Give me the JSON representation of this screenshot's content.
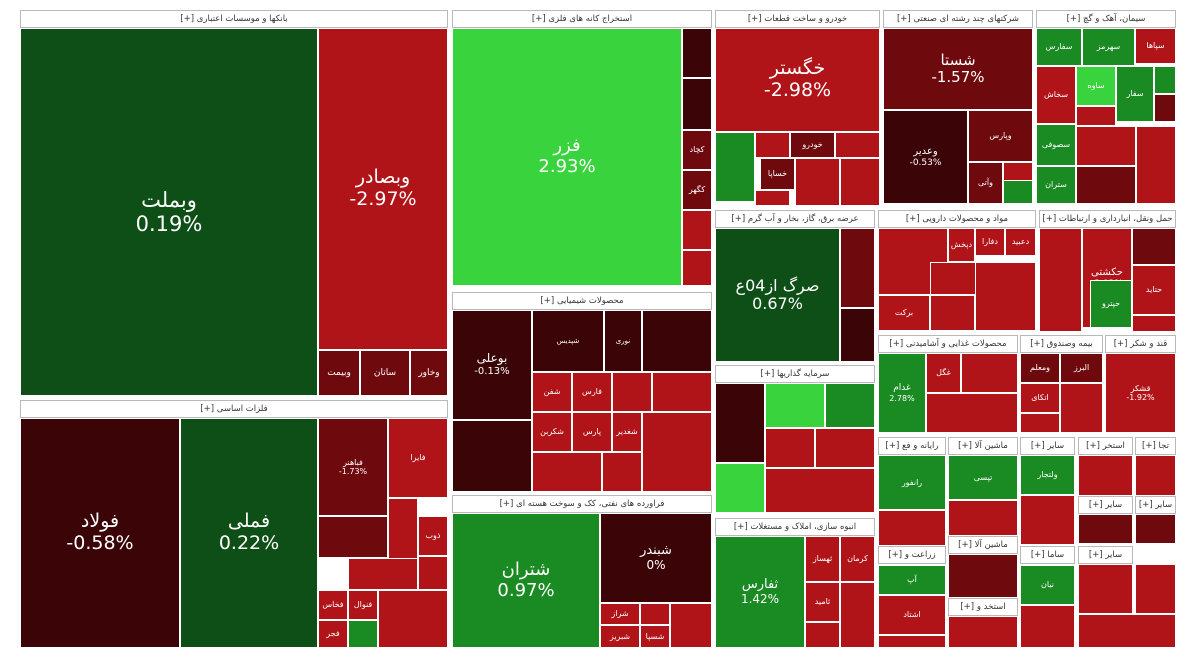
{
  "chart_data": {
    "type": "treemap",
    "sectors": [
      {
        "name": "بانکها و موسسات اعتباری [+]",
        "tiles": [
          {
            "symbol": "وبملت",
            "change": "0.19%"
          },
          {
            "symbol": "وبصادر",
            "change": "-2.97%"
          },
          {
            "symbol": "وخاور",
            "change": ""
          },
          {
            "symbol": "ساتان",
            "change": ""
          },
          {
            "symbol": "وبیمت",
            "change": ""
          }
        ]
      },
      {
        "name": "استخراج کانه های فلزی [+]",
        "tiles": [
          {
            "symbol": "فزر",
            "change": "2.93%"
          },
          {
            "symbol": "کگهر",
            "change": ""
          },
          {
            "symbol": "کچاد",
            "change": ""
          }
        ]
      },
      {
        "name": "خودرو و ساخت قطعات [+]",
        "tiles": [
          {
            "symbol": "خگستر",
            "change": "-2.98%"
          },
          {
            "symbol": "خودرو",
            "change": ""
          },
          {
            "symbol": "خساپا",
            "change": ""
          }
        ]
      },
      {
        "name": "شرکتهای چند رشته ای صنعتی [+]",
        "tiles": [
          {
            "symbol": "شستا",
            "change": "-1.57%"
          },
          {
            "symbol": "وعدیر",
            "change": "-0.53%"
          },
          {
            "symbol": "وپارس",
            "change": ""
          },
          {
            "symbol": "وآتی",
            "change": ""
          }
        ]
      },
      {
        "name": "سیمان، آهک و گچ [+]",
        "tiles": [
          {
            "symbol": "سپاها",
            "change": ""
          },
          {
            "symbol": "سهرمز",
            "change": ""
          },
          {
            "symbol": "سفارس",
            "change": ""
          },
          {
            "symbol": "سخاش",
            "change": ""
          },
          {
            "symbol": "ساوه",
            "change": ""
          },
          {
            "symbol": "سفار",
            "change": ""
          },
          {
            "symbol": "سصوفی",
            "change": ""
          },
          {
            "symbol": "ستران",
            "change": ""
          }
        ]
      },
      {
        "name": "عرضه برق، گاز، بخار و آب گرم [+]",
        "tiles": [
          {
            "symbol": "صرگ از04ع",
            "change": "0.67%"
          }
        ]
      },
      {
        "name": "مواد و محصولات دارویی [+]",
        "tiles": [
          {
            "symbol": "دعبید",
            "change": ""
          },
          {
            "symbol": "دفارا",
            "change": ""
          },
          {
            "symbol": "برکت",
            "change": ""
          },
          {
            "symbol": "دپخش",
            "change": ""
          }
        ]
      },
      {
        "name": "حمل ونقل، انبارداری و ارتباطات [+]",
        "tiles": [
          {
            "symbol": "حکشتی",
            "change": "-2.02%"
          },
          {
            "symbol": "حتاید",
            "change": ""
          },
          {
            "symbol": "حپترو",
            "change": ""
          }
        ]
      },
      {
        "name": "فلزات اساسی [+]",
        "tiles": [
          {
            "symbol": "فولاد",
            "change": "-0.58%"
          },
          {
            "symbol": "فملی",
            "change": "0.22%"
          },
          {
            "symbol": "فباهنر",
            "change": "-1.73%"
          },
          {
            "symbol": "فایرا",
            "change": ""
          },
          {
            "symbol": "ذوب",
            "change": ""
          },
          {
            "symbol": "فخاس",
            "change": ""
          },
          {
            "symbol": "فجر",
            "change": ""
          },
          {
            "symbol": "فنوال",
            "change": ""
          }
        ]
      },
      {
        "name": "محصولات شیمیایی [+]",
        "tiles": [
          {
            "symbol": "بوعلی",
            "change": "-0.13%"
          },
          {
            "symbol": "شپدیس",
            "change": ""
          },
          {
            "symbol": "نوری",
            "change": ""
          },
          {
            "symbol": "شفن",
            "change": ""
          },
          {
            "symbol": "شکربن",
            "change": ""
          },
          {
            "symbol": "پارس",
            "change": ""
          },
          {
            "symbol": "شغدیر",
            "change": ""
          },
          {
            "symbol": "فارس",
            "change": ""
          }
        ]
      },
      {
        "name": "فراورده های نفتی، کک و سوخت هسته ای [+]",
        "tiles": [
          {
            "symbol": "شتران",
            "change": "0.97%"
          },
          {
            "symbol": "شبندر",
            "change": "0%"
          },
          {
            "symbol": "شراز",
            "change": ""
          },
          {
            "symbol": "شبریز",
            "change": ""
          },
          {
            "symbol": "شسپا",
            "change": ""
          }
        ]
      },
      {
        "name": "سرمایه گذاریها [+]",
        "tiles": []
      },
      {
        "name": "انبوه سازی، املاک و مستغلات [+]",
        "tiles": [
          {
            "symbol": "ثفارس",
            "change": "1.42%"
          },
          {
            "symbol": "ثهساز",
            "change": ""
          },
          {
            "symbol": "ثامید",
            "change": ""
          },
          {
            "symbol": "کرمان",
            "change": ""
          }
        ]
      },
      {
        "name": "محصولات غذایی و آشامیدنی [+]",
        "tiles": [
          {
            "symbol": "غدام",
            "change": "2.78%"
          },
          {
            "symbol": "غگل",
            "change": ""
          }
        ]
      },
      {
        "name": "قند و شکر [+]",
        "tiles": [
          {
            "symbol": "قشکر",
            "change": "-1.92%"
          }
        ]
      },
      {
        "name": "بیمه وصندوق [+]",
        "tiles": [
          {
            "symbol": "البرز",
            "change": ""
          },
          {
            "symbol": "ومعلم",
            "change": ""
          },
          {
            "symbol": "اتکای",
            "change": ""
          }
        ]
      }
    ],
    "small_sector_labels": [
      "رایانه و فع [+]",
      "ماشین آلا [+]",
      "سایر [+]",
      "استخر [+]",
      "زراعت و [+]",
      "ماشین آلا [+]",
      "سایر [+]",
      "استخد و [+]",
      "ساما [+]",
      "سایر [+]",
      "تجا [+]",
      "سایر [+]"
    ],
    "small_tile_labels": [
      "رانفور",
      "تپسی",
      "آپ",
      "اشتاد",
      "ولتجار",
      "نیان"
    ],
    "legend": "none",
    "colors": {
      "dark_red": "#3b0508",
      "maroon": "#6e0a0e",
      "red": "#b01318",
      "dark_green": "#0d4f16",
      "green": "#1a8a23",
      "light_green": "#39d43d"
    }
  }
}
